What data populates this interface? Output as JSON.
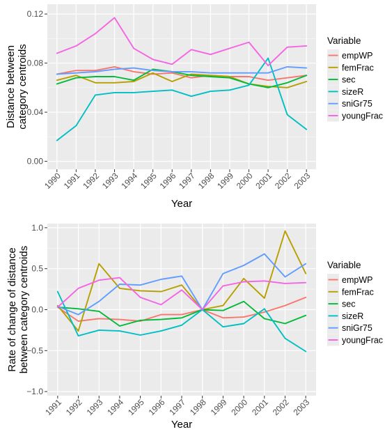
{
  "colors": {
    "empWP": "#F8766D",
    "femFrac": "#B79F00",
    "sec": "#00BA38",
    "sizeR": "#00BFC4",
    "sniGr75": "#619CFF",
    "youngFrac": "#F564E3",
    "panel_bg": "#EBEBEB",
    "grid": "#ffffff"
  },
  "chart_data": [
    {
      "type": "line",
      "xlabel": "Year",
      "ylabel_lines": [
        "Distance between",
        "category centroids"
      ],
      "x": [
        1990,
        1991,
        1992,
        1993,
        1994,
        1995,
        1996,
        1997,
        1998,
        1999,
        2000,
        2001,
        2002,
        2003
      ],
      "x_tick_labels": [
        "1990",
        "1991",
        "1992",
        "1993",
        "1994",
        "1995",
        "1996",
        "1997",
        "1998",
        "1999",
        "2000",
        "2001",
        "2002",
        "2003"
      ],
      "ylim": [
        -0.0065,
        0.128
      ],
      "y_ticks": [
        0.0,
        0.04,
        0.08,
        0.12
      ],
      "y_tick_labels": [
        "0.00",
        "0.04",
        "0.08",
        "0.12"
      ],
      "grid": true,
      "legend": {
        "title": "Variable",
        "position": "right"
      },
      "series": [
        {
          "name": "empWP",
          "values": [
            0.071,
            0.074,
            0.074,
            0.077,
            0.073,
            0.071,
            0.072,
            0.068,
            0.07,
            0.069,
            0.069,
            0.066,
            0.068,
            0.07
          ]
        },
        {
          "name": "femFrac",
          "values": [
            0.066,
            0.07,
            0.064,
            0.064,
            0.065,
            0.072,
            0.065,
            0.071,
            0.07,
            0.069,
            0.063,
            0.061,
            0.06,
            0.065
          ]
        },
        {
          "name": "sec",
          "values": [
            0.063,
            0.068,
            0.069,
            0.069,
            0.066,
            0.075,
            0.073,
            0.07,
            0.069,
            0.068,
            0.063,
            0.06,
            0.064,
            0.07
          ]
        },
        {
          "name": "sizeR",
          "values": [
            0.017,
            0.029,
            0.054,
            0.056,
            0.056,
            0.057,
            0.058,
            0.053,
            0.057,
            0.058,
            0.062,
            0.084,
            0.038,
            0.026
          ]
        },
        {
          "name": "sniGr75",
          "values": [
            0.071,
            0.072,
            0.073,
            0.075,
            0.076,
            0.074,
            0.073,
            0.073,
            0.072,
            0.072,
            0.072,
            0.072,
            0.077,
            0.076
          ]
        },
        {
          "name": "youngFrac",
          "values": [
            0.088,
            0.094,
            0.104,
            0.117,
            0.092,
            0.083,
            0.079,
            0.091,
            0.087,
            0.092,
            0.097,
            0.078,
            0.093,
            0.094
          ]
        }
      ]
    },
    {
      "type": "line",
      "xlabel": "Year",
      "ylabel_lines": [
        "Rate of change of distance",
        "between category centroids"
      ],
      "x": [
        1991,
        1992,
        1993,
        1994,
        1995,
        1996,
        1997,
        1998,
        1999,
        2000,
        2001,
        2002,
        2003
      ],
      "x_tick_labels": [
        "1991",
        "1992",
        "1993",
        "1994",
        "1995",
        "1996",
        "1997",
        "1998",
        "1999",
        "2000",
        "2001",
        "2002",
        "2003"
      ],
      "ylim": [
        -1.05,
        1.05
      ],
      "y_ticks": [
        -1.0,
        -0.5,
        0.0,
        0.5,
        1.0
      ],
      "y_tick_labels": [
        "−1.0",
        "−0.5",
        "0.0",
        "0.5",
        "1.0"
      ],
      "grid": true,
      "legend": {
        "title": "Variable",
        "position": "right"
      },
      "series": [
        {
          "name": "empWP",
          "values": [
            0.03,
            -0.14,
            -0.11,
            -0.12,
            -0.14,
            -0.06,
            -0.06,
            0.0,
            -0.1,
            -0.09,
            -0.03,
            0.05,
            0.15
          ]
        },
        {
          "name": "femFrac",
          "values": [
            0.05,
            -0.26,
            0.56,
            0.26,
            0.23,
            0.22,
            0.3,
            0.0,
            0.05,
            0.38,
            0.14,
            0.96,
            0.44
          ]
        },
        {
          "name": "sec",
          "values": [
            0.03,
            0.01,
            -0.02,
            -0.2,
            -0.13,
            -0.12,
            -0.1,
            0.0,
            -0.01,
            0.1,
            -0.11,
            -0.17,
            -0.07
          ]
        },
        {
          "name": "sizeR",
          "values": [
            0.22,
            -0.32,
            -0.25,
            -0.26,
            -0.31,
            -0.26,
            -0.19,
            0.0,
            -0.21,
            -0.17,
            0.01,
            -0.35,
            -0.51
          ]
        },
        {
          "name": "sniGr75",
          "values": [
            0.04,
            -0.06,
            0.1,
            0.31,
            0.3,
            0.37,
            0.41,
            0.0,
            0.44,
            0.54,
            0.68,
            0.4,
            0.56
          ]
        },
        {
          "name": "youngFrac",
          "values": [
            0.03,
            0.26,
            0.36,
            0.39,
            0.15,
            0.06,
            0.24,
            0.0,
            0.29,
            0.34,
            0.35,
            0.32,
            0.33
          ]
        }
      ]
    }
  ]
}
